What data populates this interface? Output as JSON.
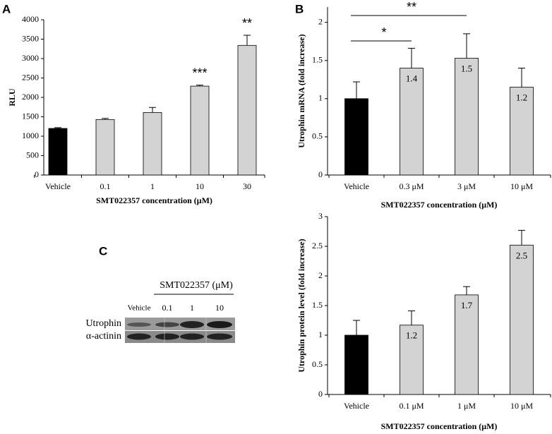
{
  "chart_data": [
    {
      "type": "bar",
      "panel_label": "A",
      "y_label": "RLU",
      "x_label": "SMT022357 concentration (μM)",
      "categories": [
        "Vehicle",
        "0.1",
        "1",
        "10",
        "30"
      ],
      "values": [
        1200,
        1430,
        1610,
        2290,
        3340
      ],
      "errors": [
        20,
        30,
        130,
        25,
        260
      ],
      "colors": [
        "#000000",
        "#d3d3d3",
        "#d3d3d3",
        "#d3d3d3",
        "#d3d3d3"
      ],
      "ylim": [
        0,
        4000
      ],
      "yticks": [
        0,
        500,
        1000,
        1500,
        2000,
        2500,
        3000,
        3500,
        4000
      ],
      "annotations": [
        {
          "text": "***",
          "at": "10"
        },
        {
          "text": "**",
          "at": "30"
        }
      ]
    },
    {
      "type": "bar",
      "panel_label": "B",
      "y_label": "Utrophin mRNA  (fold increase)",
      "x_label": "SMT022357 concentration (μM)",
      "categories": [
        "Vehicle",
        "0.3 μM",
        "3 μM",
        "10 μM"
      ],
      "values": [
        1,
        1.4,
        1.53,
        1.15
      ],
      "value_labels": [
        null,
        "1.4",
        "1.5",
        "1.2"
      ],
      "errors": [
        0.22,
        0.26,
        0.32,
        0.25
      ],
      "colors": [
        "#000000",
        "#d3d3d3",
        "#d3d3d3",
        "#d3d3d3"
      ],
      "ylim": [
        0,
        2.2
      ],
      "yticks": [
        0,
        0.5,
        1,
        1.5,
        2
      ],
      "brackets": [
        {
          "text": "*",
          "from": "Vehicle",
          "to": "0.3 μM"
        },
        {
          "text": "**",
          "from": "Vehicle",
          "to": "3 μM"
        }
      ]
    },
    {
      "type": "bar",
      "y_label": "Utrophin protein level (fold increase)",
      "x_label": "SMT022357 concentration (μM)",
      "categories": [
        "Vehicle",
        "0.1 μM",
        "1 μM",
        "10 μM"
      ],
      "values": [
        1,
        1.17,
        1.68,
        2.52
      ],
      "value_labels": [
        null,
        "1.2",
        "1.7",
        "2.5"
      ],
      "errors": [
        0.25,
        0.24,
        0.14,
        0.25
      ],
      "colors": [
        "#000000",
        "#d3d3d3",
        "#d3d3d3",
        "#d3d3d3"
      ],
      "ylim": [
        0,
        3
      ],
      "yticks": [
        0,
        0.5,
        1,
        1.5,
        2,
        2.5,
        3
      ]
    }
  ],
  "blot": {
    "panel_label": "C",
    "treatment": "SMT022357 (μM)",
    "lanes": [
      "Vehicle",
      "0.1",
      "1",
      "10"
    ],
    "rows": [
      "Utrophin",
      "α-actinin"
    ]
  }
}
